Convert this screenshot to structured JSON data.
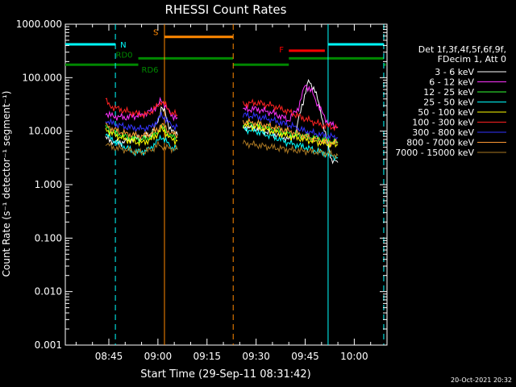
{
  "chart_data": {
    "type": "line",
    "title": "RHESSI Count Rates",
    "xlabel": "Start Time (29-Sep-11 08:31:42)",
    "ylabel": "Count Rate (s⁻¹ detector⁻¹ segment⁻¹)",
    "y_scale": "log",
    "ylim": [
      0.001,
      1000
    ],
    "xlim": [
      "08:31:42",
      "10:10:00"
    ],
    "x_ticks": [
      "08:45",
      "09:00",
      "09:15",
      "09:30",
      "09:45",
      "10:00"
    ],
    "y_ticks": [
      "0.001",
      "0.010",
      "0.100",
      "1.000",
      "10.000",
      "100.000",
      "1000.000"
    ],
    "legend_header": [
      "Det 1f,3f,4f,5f,6f,9f,",
      "FDecim 1, Att 0"
    ],
    "timestamp": "20-Oct-2021 20:32",
    "series": [
      {
        "name": "3 - 6 keV",
        "color": "#ffffff",
        "segments": [
          [
            [
              "08:44",
              7.5
            ],
            [
              "08:46",
              6.5
            ],
            [
              "08:48",
              6
            ],
            [
              "08:50",
              6.5
            ],
            [
              "08:52",
              7
            ],
            [
              "08:55",
              7.5
            ],
            [
              "08:58",
              9
            ],
            [
              "09:00",
              15
            ],
            [
              "09:01",
              28
            ],
            [
              "09:02",
              24
            ],
            [
              "09:03",
              14
            ],
            [
              "09:05",
              9
            ],
            [
              "09:06",
              8.5
            ]
          ],
          [
            [
              "09:26",
              12
            ],
            [
              "09:30",
              11
            ],
            [
              "09:35",
              9
            ],
            [
              "09:40",
              7
            ],
            [
              "09:42",
              9
            ],
            [
              "09:44",
              30
            ],
            [
              "09:46",
              85
            ],
            [
              "09:48",
              60
            ],
            [
              "09:50",
              20
            ],
            [
              "09:52",
              5
            ],
            [
              "09:53",
              3
            ],
            [
              "09:55",
              2.6
            ]
          ]
        ]
      },
      {
        "name": "6 - 12 keV",
        "color": "#ff33ff",
        "segments": [
          [
            [
              "08:44",
              22
            ],
            [
              "08:46",
              19
            ],
            [
              "08:50",
              18
            ],
            [
              "08:55",
              20
            ],
            [
              "08:58",
              24
            ],
            [
              "09:00",
              30
            ],
            [
              "09:01",
              38
            ],
            [
              "09:02",
              32
            ],
            [
              "09:04",
              20
            ],
            [
              "09:06",
              18
            ]
          ],
          [
            [
              "09:26",
              25
            ],
            [
              "09:30",
              26
            ],
            [
              "09:35",
              22
            ],
            [
              "09:40",
              16
            ],
            [
              "09:43",
              28
            ],
            [
              "09:45",
              75
            ],
            [
              "09:47",
              55
            ],
            [
              "09:49",
              30
            ],
            [
              "09:52",
              14
            ],
            [
              "09:55",
              12
            ]
          ]
        ]
      },
      {
        "name": "12 - 25 keV",
        "color": "#33ff33",
        "segments": [
          [
            [
              "08:44",
              12
            ],
            [
              "08:46",
              10
            ],
            [
              "08:50",
              8
            ],
            [
              "08:55",
              7
            ],
            [
              "08:58",
              8
            ],
            [
              "09:00",
              10
            ],
            [
              "09:01",
              12
            ],
            [
              "09:02",
              11
            ],
            [
              "09:04",
              8
            ],
            [
              "09:06",
              7.5
            ]
          ],
          [
            [
              "09:26",
              14
            ],
            [
              "09:30",
              13
            ],
            [
              "09:35",
              11
            ],
            [
              "09:40",
              9
            ],
            [
              "09:45",
              8
            ],
            [
              "09:50",
              7
            ],
            [
              "09:55",
              6
            ]
          ]
        ]
      },
      {
        "name": "25 - 50 keV",
        "color": "#00ffff",
        "segments": [
          [
            [
              "08:44",
              9
            ],
            [
              "08:46",
              7
            ],
            [
              "08:50",
              5
            ],
            [
              "08:53",
              4
            ],
            [
              "08:56",
              4.2
            ],
            [
              "08:58",
              5
            ],
            [
              "09:00",
              6.5
            ],
            [
              "09:01",
              8
            ],
            [
              "09:02",
              7
            ],
            [
              "09:04",
              5
            ],
            [
              "09:06",
              4.8
            ]
          ],
          [
            [
              "09:26",
              11
            ],
            [
              "09:30",
              10
            ],
            [
              "09:35",
              8
            ],
            [
              "09:40",
              6
            ],
            [
              "09:45",
              5
            ],
            [
              "09:50",
              4
            ],
            [
              "09:55",
              3.2
            ]
          ]
        ]
      },
      {
        "name": "50 - 100 keV",
        "color": "#ffff00",
        "segments": [
          [
            [
              "08:44",
              11
            ],
            [
              "08:46",
              9
            ],
            [
              "08:50",
              7
            ],
            [
              "08:55",
              6
            ],
            [
              "08:58",
              7
            ],
            [
              "09:00",
              9
            ],
            [
              "09:01",
              11
            ],
            [
              "09:02",
              10
            ],
            [
              "09:04",
              7
            ],
            [
              "09:06",
              6.5
            ]
          ],
          [
            [
              "09:26",
              13
            ],
            [
              "09:30",
              12
            ],
            [
              "09:35",
              10
            ],
            [
              "09:40",
              8
            ],
            [
              "09:45",
              7
            ],
            [
              "09:50",
              6
            ],
            [
              "09:55",
              5.5
            ]
          ]
        ]
      },
      {
        "name": "100 - 300 keV",
        "color": "#ff2222",
        "segments": [
          [
            [
              "08:44",
              40
            ],
            [
              "08:45",
              30
            ],
            [
              "08:48",
              26
            ],
            [
              "08:52",
              22
            ],
            [
              "08:56",
              20
            ],
            [
              "08:58",
              23
            ],
            [
              "09:00",
              30
            ],
            [
              "09:01",
              36
            ],
            [
              "09:02",
              32
            ],
            [
              "09:04",
              22
            ],
            [
              "09:06",
              20
            ]
          ],
          [
            [
              "09:26",
              32
            ],
            [
              "09:30",
              34
            ],
            [
              "09:35",
              30
            ],
            [
              "09:40",
              23
            ],
            [
              "09:45",
              17
            ],
            [
              "09:50",
              13
            ],
            [
              "09:55",
              11.5
            ]
          ]
        ]
      },
      {
        "name": "300 - 800 keV",
        "color": "#3333ff",
        "segments": [
          [
            [
              "08:44",
              16
            ],
            [
              "08:46",
              14
            ],
            [
              "08:50",
              12
            ],
            [
              "08:55",
              11
            ],
            [
              "08:58",
              12
            ],
            [
              "09:00",
              16
            ],
            [
              "09:01",
              20
            ],
            [
              "09:02",
              18
            ],
            [
              "09:04",
              13
            ],
            [
              "09:06",
              12
            ]
          ],
          [
            [
              "09:26",
              20
            ],
            [
              "09:30",
              19
            ],
            [
              "09:35",
              16
            ],
            [
              "09:40",
              13
            ],
            [
              "09:45",
              10
            ],
            [
              "09:50",
              8.5
            ],
            [
              "09:55",
              7.5
            ]
          ]
        ]
      },
      {
        "name": "800 - 7000 keV",
        "color": "#ff9933",
        "segments": [
          [
            [
              "08:44",
              13
            ],
            [
              "08:46",
              11
            ],
            [
              "08:50",
              9
            ],
            [
              "08:55",
              8
            ],
            [
              "08:58",
              9
            ],
            [
              "09:00",
              11
            ],
            [
              "09:01",
              13
            ],
            [
              "09:02",
              12
            ],
            [
              "09:04",
              9
            ],
            [
              "09:06",
              8.5
            ]
          ],
          [
            [
              "09:26",
              15
            ],
            [
              "09:30",
              14
            ],
            [
              "09:35",
              12
            ],
            [
              "09:40",
              10
            ],
            [
              "09:45",
              8
            ],
            [
              "09:50",
              6.5
            ],
            [
              "09:55",
              6
            ]
          ]
        ]
      },
      {
        "name": "7000 - 15000 keV",
        "color": "#aa7722",
        "segments": [
          [
            [
              "08:44",
              6
            ],
            [
              "08:46",
              5
            ],
            [
              "08:50",
              4.5
            ],
            [
              "08:55",
              4
            ],
            [
              "08:58",
              4.5
            ],
            [
              "09:00",
              5.5
            ],
            [
              "09:02",
              5
            ],
            [
              "09:06",
              4.5
            ]
          ],
          [
            [
              "09:26",
              6
            ],
            [
              "09:30",
              5.5
            ],
            [
              "09:40",
              4.5
            ],
            [
              "09:50",
              4
            ],
            [
              "09:55",
              3.5
            ]
          ]
        ]
      }
    ],
    "bars": [
      {
        "label": "N",
        "color": "#00ffff",
        "y": 420,
        "spans": [
          [
            "08:31:42",
            "08:47"
          ],
          [
            "09:52",
            "10:09"
          ]
        ]
      },
      {
        "label": "S",
        "color": "#ff8800",
        "y": 580,
        "spans": [
          [
            "09:02",
            "09:23"
          ]
        ]
      },
      {
        "label": "F",
        "color": "#ff0000",
        "y": 320,
        "spans": [
          [
            "09:40",
            "09:51"
          ]
        ]
      },
      {
        "label": "RD0",
        "color": "#008800",
        "y": 230,
        "spans": [
          [
            "08:54",
            "09:23"
          ],
          [
            "09:40",
            "10:09"
          ]
        ]
      },
      {
        "label": "RD6",
        "color": "#008800",
        "y": 175,
        "spans": [
          [
            "08:31:42",
            "08:54"
          ],
          [
            "09:23",
            "09:40"
          ],
          [
            "10:09",
            "10:09:40"
          ]
        ]
      }
    ],
    "vlines": [
      {
        "t": "08:47",
        "color": "#00ffff",
        "style": "dashed"
      },
      {
        "t": "09:02",
        "color": "#ff8800",
        "style": "solid"
      },
      {
        "t": "09:23",
        "color": "#ff8800",
        "style": "dashed"
      },
      {
        "t": "09:52",
        "color": "#00ffff",
        "style": "solid"
      },
      {
        "t": "10:09",
        "color": "#00ffff",
        "style": "dashed"
      }
    ]
  }
}
